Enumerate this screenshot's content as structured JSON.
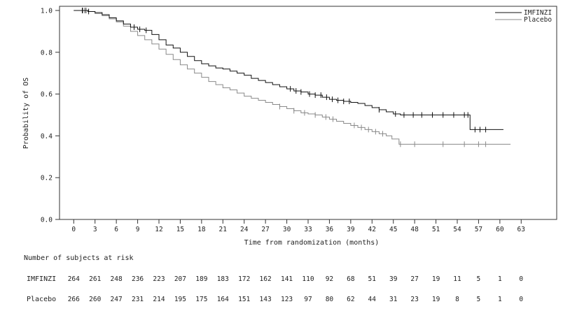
{
  "chart_data": {
    "type": "line",
    "title": "",
    "xlabel": "Time from randomization (months)",
    "ylabel": "Probability of OS",
    "xlim": [
      -2,
      68
    ],
    "ylim": [
      0.0,
      1.02
    ],
    "x_ticks": [
      0,
      3,
      6,
      9,
      12,
      15,
      18,
      21,
      24,
      27,
      30,
      33,
      36,
      39,
      42,
      45,
      48,
      51,
      54,
      57,
      60,
      63
    ],
    "x_tick_labels": [
      "0",
      "3",
      "6",
      "9",
      "12",
      "15",
      "18",
      "21",
      "24",
      "27",
      "30",
      "33",
      "36",
      "39",
      "42",
      "45",
      "48",
      "51",
      "54",
      "57",
      "60",
      "63"
    ],
    "y_ticks": [
      0.0,
      0.2,
      0.4,
      0.6,
      0.8,
      1.0
    ],
    "y_tick_labels": [
      "0.0",
      "0.2",
      "0.4",
      "0.6",
      "0.8",
      "1.0"
    ],
    "grid": false,
    "legend_position": "top-right",
    "series": [
      {
        "name": "IMFINZI",
        "color": "#111111",
        "steps": [
          [
            0,
            1.0
          ],
          [
            1.5,
            1.0
          ],
          [
            2,
            0.995
          ],
          [
            3,
            0.99
          ],
          [
            4,
            0.98
          ],
          [
            5,
            0.965
          ],
          [
            6,
            0.95
          ],
          [
            7,
            0.935
          ],
          [
            8,
            0.92
          ],
          [
            9,
            0.91
          ],
          [
            10,
            0.905
          ],
          [
            11,
            0.885
          ],
          [
            12,
            0.86
          ],
          [
            13,
            0.835
          ],
          [
            14,
            0.82
          ],
          [
            15,
            0.8
          ],
          [
            16,
            0.78
          ],
          [
            17,
            0.76
          ],
          [
            18,
            0.745
          ],
          [
            19,
            0.735
          ],
          [
            20,
            0.725
          ],
          [
            21,
            0.72
          ],
          [
            22,
            0.71
          ],
          [
            23,
            0.7
          ],
          [
            24,
            0.69
          ],
          [
            25,
            0.675
          ],
          [
            26,
            0.665
          ],
          [
            27,
            0.655
          ],
          [
            28,
            0.645
          ],
          [
            29,
            0.635
          ],
          [
            30,
            0.625
          ],
          [
            31,
            0.615
          ],
          [
            32,
            0.61
          ],
          [
            33,
            0.6
          ],
          [
            34,
            0.595
          ],
          [
            35,
            0.585
          ],
          [
            36,
            0.575
          ],
          [
            37,
            0.57
          ],
          [
            38,
            0.565
          ],
          [
            39,
            0.56
          ],
          [
            40,
            0.555
          ],
          [
            41,
            0.545
          ],
          [
            42,
            0.535
          ],
          [
            43,
            0.525
          ],
          [
            44,
            0.515
          ],
          [
            45,
            0.505
          ],
          [
            46,
            0.5
          ],
          [
            55.8,
            0.5
          ],
          [
            55.8,
            0.43
          ],
          [
            60.5,
            0.43
          ]
        ],
        "censor_x": [
          1.2,
          1.6,
          2.1,
          8.5,
          9.3,
          10.2,
          30.5,
          31.3,
          32,
          33.2,
          34,
          34.8,
          35.6,
          36.4,
          37.2,
          38,
          38.8,
          43,
          45.3,
          46.5,
          47.8,
          49,
          50.5,
          52,
          53.5,
          55,
          55.5,
          56.5,
          57.2,
          58
        ]
      },
      {
        "name": "Placebo",
        "color": "#8a8a8a",
        "steps": [
          [
            0,
            1.0
          ],
          [
            1.5,
            1.0
          ],
          [
            2,
            0.995
          ],
          [
            3,
            0.985
          ],
          [
            4,
            0.975
          ],
          [
            5,
            0.96
          ],
          [
            6,
            0.945
          ],
          [
            7,
            0.925
          ],
          [
            8,
            0.9
          ],
          [
            9,
            0.88
          ],
          [
            10,
            0.86
          ],
          [
            11,
            0.84
          ],
          [
            12,
            0.815
          ],
          [
            13,
            0.79
          ],
          [
            14,
            0.765
          ],
          [
            15,
            0.74
          ],
          [
            16,
            0.72
          ],
          [
            17,
            0.7
          ],
          [
            18,
            0.68
          ],
          [
            19,
            0.66
          ],
          [
            20,
            0.645
          ],
          [
            21,
            0.63
          ],
          [
            22,
            0.62
          ],
          [
            23,
            0.605
          ],
          [
            24,
            0.59
          ],
          [
            25,
            0.58
          ],
          [
            26,
            0.57
          ],
          [
            27,
            0.56
          ],
          [
            28,
            0.55
          ],
          [
            29,
            0.54
          ],
          [
            30,
            0.53
          ],
          [
            31,
            0.52
          ],
          [
            32,
            0.51
          ],
          [
            33,
            0.505
          ],
          [
            34,
            0.5
          ],
          [
            35,
            0.49
          ],
          [
            36,
            0.48
          ],
          [
            37,
            0.47
          ],
          [
            38,
            0.46
          ],
          [
            39,
            0.45
          ],
          [
            40,
            0.44
          ],
          [
            41,
            0.43
          ],
          [
            42,
            0.42
          ],
          [
            43,
            0.41
          ],
          [
            44,
            0.4
          ],
          [
            44.8,
            0.385
          ],
          [
            45.8,
            0.36
          ],
          [
            61.5,
            0.36
          ]
        ],
        "censor_x": [
          1.3,
          1.8,
          29,
          31,
          32.5,
          34,
          35.5,
          36.5,
          39.5,
          40.5,
          41.5,
          42.5,
          43.5,
          46,
          48,
          52,
          55,
          57,
          58
        ]
      }
    ]
  },
  "risk_table": {
    "heading": "Number of subjects at risk",
    "rows": [
      {
        "label": "IMFINZI",
        "values": [
          "264",
          "261",
          "248",
          "236",
          "223",
          "207",
          "189",
          "183",
          "172",
          "162",
          "141",
          "110",
          "92",
          "68",
          "51",
          "39",
          "27",
          "19",
          "11",
          "5",
          "1",
          "0"
        ]
      },
      {
        "label": "Placebo",
        "values": [
          "266",
          "260",
          "247",
          "231",
          "214",
          "195",
          "175",
          "164",
          "151",
          "143",
          "123",
          "97",
          "80",
          "62",
          "44",
          "31",
          "23",
          "19",
          "8",
          "5",
          "1",
          "0"
        ]
      }
    ]
  }
}
